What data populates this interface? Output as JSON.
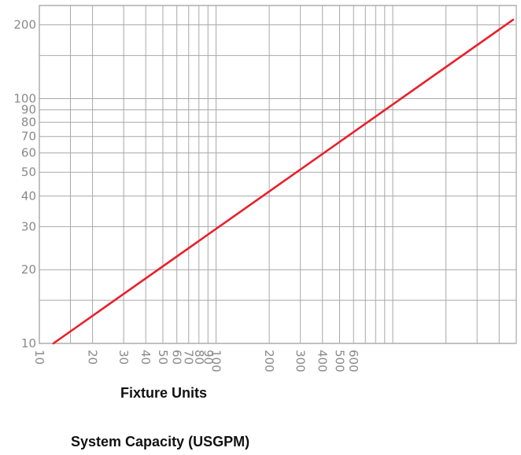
{
  "chart_data": {
    "type": "line",
    "xscale": "log",
    "yscale": "log",
    "xlim": [
      10,
      5000
    ],
    "ylim": [
      10,
      240
    ],
    "grid": true,
    "x_ticks": [
      10,
      20,
      30,
      40,
      50,
      60,
      70,
      80,
      90,
      100,
      200,
      300,
      400,
      500,
      600
    ],
    "x_tick_labels": [
      "10",
      "20",
      "30",
      "40",
      "50",
      "60",
      "70",
      "80",
      "90",
      "100",
      "200",
      "300",
      "400",
      "500",
      "600"
    ],
    "x_extra_gridlines": [
      15,
      700,
      800,
      900,
      1000,
      2000,
      3000,
      4000,
      5000
    ],
    "y_ticks": [
      10,
      20,
      30,
      40,
      50,
      60,
      70,
      80,
      90,
      100,
      200
    ],
    "y_tick_labels": [
      "10",
      "20",
      "30",
      "40",
      "50",
      "60",
      "70",
      "80",
      "90",
      "100",
      "200"
    ],
    "y_extra_gridlines": [
      15,
      150
    ],
    "series": [
      {
        "color": "#e8202c",
        "x": [
          12,
          4800
        ],
        "y": [
          10,
          210
        ]
      }
    ],
    "xlabel": "Fixture Units",
    "footer": "System Capacity (USGPM)"
  }
}
